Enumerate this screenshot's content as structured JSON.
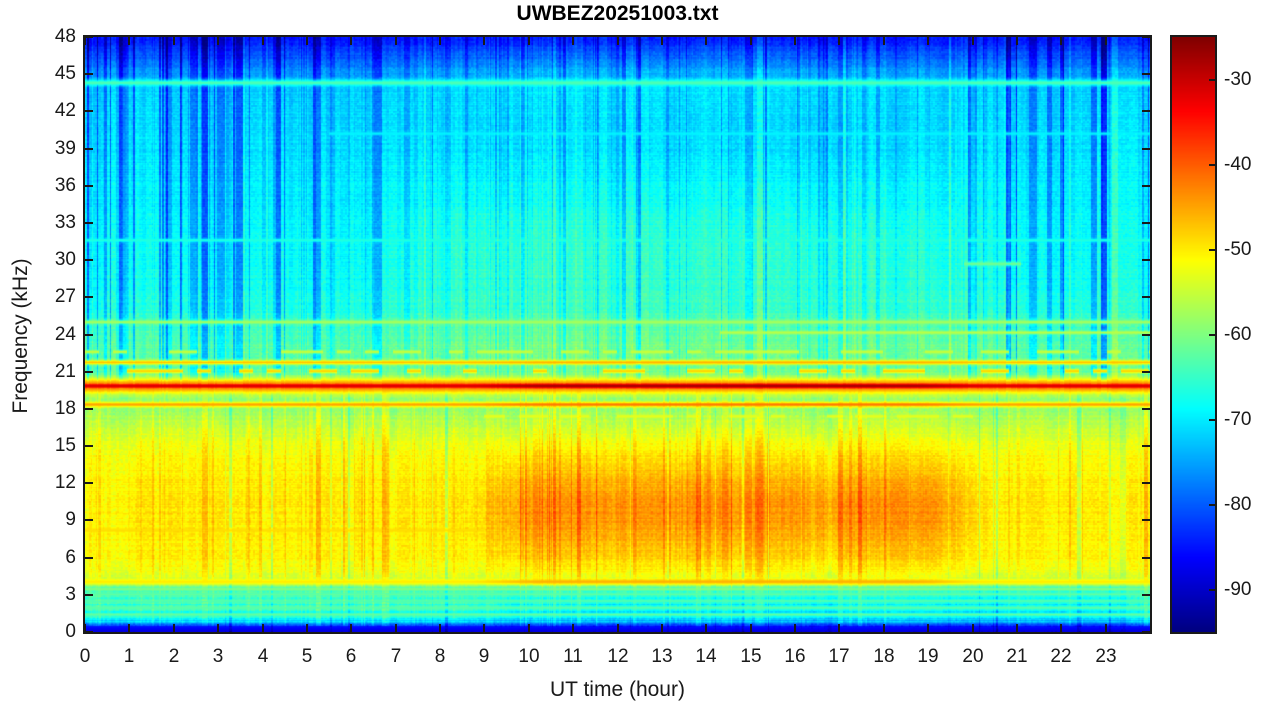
{
  "chart_data": {
    "type": "heatmap",
    "subtype": "spectrogram",
    "title": "UWBEZ20251003.txt",
    "xlabel": "UT time (hour)",
    "ylabel": "Frequency (kHz)",
    "x_range": [
      0,
      24
    ],
    "y_range_khz": [
      0,
      48
    ],
    "x_ticks": [
      0,
      1,
      2,
      3,
      4,
      5,
      6,
      7,
      8,
      9,
      10,
      11,
      12,
      13,
      14,
      15,
      16,
      17,
      18,
      19,
      20,
      21,
      22,
      23
    ],
    "y_ticks": [
      0,
      3,
      6,
      9,
      12,
      15,
      18,
      21,
      24,
      27,
      30,
      33,
      36,
      39,
      42,
      45,
      48
    ],
    "grid": false,
    "colorbar": {
      "position": "right",
      "colormap": "jet",
      "range_db": [
        -95,
        -25
      ],
      "ticks": [
        -30,
        -40,
        -50,
        -60,
        -70,
        -80,
        -90
      ]
    },
    "axis_color": "#1a1a1a",
    "background_color": "#ffffff",
    "render_model": {
      "seed": 20251003,
      "base_profile_khz_db": [
        [
          0,
          -89
        ],
        [
          0.45,
          -84
        ],
        [
          0.8,
          -72
        ],
        [
          1.2,
          -67
        ],
        [
          2.0,
          -66
        ],
        [
          3.0,
          -65.5
        ],
        [
          3.6,
          -63
        ],
        [
          4.3,
          -55
        ],
        [
          5.0,
          -52
        ],
        [
          6,
          -51
        ],
        [
          8,
          -50.5
        ],
        [
          10,
          -50
        ],
        [
          12,
          -50.5
        ],
        [
          14,
          -51.5
        ],
        [
          15.5,
          -53.5
        ],
        [
          16.5,
          -55.5
        ],
        [
          17.5,
          -57.5
        ],
        [
          18.0,
          -58.5
        ],
        [
          18.8,
          -61
        ],
        [
          19.4,
          -62.5
        ],
        [
          20.4,
          -64
        ],
        [
          21.3,
          -63
        ],
        [
          22.3,
          -62.5
        ],
        [
          23.2,
          -63
        ],
        [
          24.5,
          -64.5
        ],
        [
          26,
          -66.5
        ],
        [
          28,
          -68
        ],
        [
          31,
          -68.5
        ],
        [
          34,
          -69.5
        ],
        [
          38,
          -70.5
        ],
        [
          41,
          -71.5
        ],
        [
          43.5,
          -72
        ],
        [
          44.8,
          -75
        ],
        [
          45.8,
          -78
        ],
        [
          46.6,
          -81
        ],
        [
          47.4,
          -83.5
        ],
        [
          48,
          -84.5
        ]
      ],
      "h_lines": [
        {
          "name": "vlf-19.8khz-strong",
          "f": 19.85,
          "w": 0.22,
          "db": -31,
          "mid_boost": 3.5
        },
        {
          "name": "vlf-19.8khz-skirt",
          "f": 19.85,
          "w": 0.5,
          "db": -44
        },
        {
          "name": "vlf-18.3khz",
          "f": 18.35,
          "w": 0.14,
          "db": -45,
          "mid_boost": 3
        },
        {
          "name": "vlf-21.8khz",
          "f": 21.75,
          "w": 0.13,
          "db": -47,
          "mid_boost": 1
        },
        {
          "name": "vlf-21.0khz-dashes",
          "f": 21.05,
          "w": 0.12,
          "db": -48,
          "dash": 0.5
        },
        {
          "name": "vlf-22.6khz-faint",
          "f": 22.6,
          "w": 0.1,
          "db": -55,
          "dash": 0.6
        },
        {
          "name": "vlf-24.2khz-late",
          "f": 24.15,
          "w": 0.1,
          "db": -56,
          "t0": 14.3,
          "t1": 24
        },
        {
          "name": "vlf-25.0khz",
          "f": 25.0,
          "w": 0.12,
          "db": -57.5
        },
        {
          "name": "tweek-4khz",
          "f": 4.05,
          "w": 0.18,
          "db": -50,
          "mid_boost": 4
        },
        {
          "name": "band-8.2khz",
          "f": 8.2,
          "w": 0.12,
          "db": -49,
          "t0": 0,
          "t1": 9
        },
        {
          "name": "band-17.4khz",
          "f": 17.4,
          "w": 0.1,
          "db": -53,
          "t0": 9,
          "t1": 20,
          "dash": 0.5
        },
        {
          "name": "line-44.3khz",
          "f": 44.3,
          "w": 0.18,
          "db": -63.5
        },
        {
          "name": "line-40.2khz-faint",
          "f": 40.2,
          "w": 0.1,
          "db": -69.5,
          "t0": 5.5,
          "t1": 24
        },
        {
          "name": "line-31.6khz-faint",
          "f": 31.6,
          "w": 0.1,
          "db": -66.5
        },
        {
          "name": "line-29.7khz-segment",
          "f": 29.7,
          "w": 0.12,
          "db": -61,
          "t0": 19.8,
          "t1": 21.1
        },
        {
          "name": "striation-1.4",
          "f": 1.4,
          "w": 0.08,
          "db": -62
        },
        {
          "name": "striation-1.9",
          "f": 1.95,
          "w": 0.08,
          "db": -62.5
        },
        {
          "name": "striation-2.5",
          "f": 2.5,
          "w": 0.08,
          "db": -63
        },
        {
          "name": "striation-3.0",
          "f": 3.05,
          "w": 0.08,
          "db": -62
        },
        {
          "name": "striation-3.5",
          "f": 3.45,
          "w": 0.09,
          "db": -60
        }
      ],
      "day_blobs": [
        {
          "name": "daytime-chorus-blob",
          "fc": 9.8,
          "sf": 3.0,
          "amp": 6.0,
          "t0": 9.2,
          "t1": 19.8,
          "soft": 0.9
        },
        {
          "name": "daytime-30khz-green",
          "fc": 30.5,
          "sf": 4.5,
          "amp": 3.2,
          "t0": 7.5,
          "t1": 19.5,
          "soft": 1.8
        },
        {
          "name": "daytime-45khz",
          "fc": 45,
          "sf": 2.2,
          "amp": 2.0,
          "t0": 8,
          "t1": 19,
          "soft": 2.0
        },
        {
          "name": "daytime-22khz",
          "fc": 22.5,
          "sf": 2.0,
          "amp": 1.5,
          "t0": 8,
          "t1": 20,
          "soft": 1.5
        },
        {
          "name": "day-lowband-dim",
          "fc": 2.0,
          "sf": 1.2,
          "amp": -3.5,
          "t0": 9.5,
          "t1": 23.5,
          "soft": 1.2
        },
        {
          "name": "early-morning-dim",
          "fc": 10,
          "sf": 4.0,
          "amp": -2.0,
          "t0": -2,
          "t1": 0.5,
          "soft": 0.6
        }
      ],
      "gap_columns": [
        {
          "t": 3.28,
          "w": 0.06,
          "db": -5
        },
        {
          "t": 5.55,
          "w": 0.05,
          "db": -4
        },
        {
          "t": 8.15,
          "w": 0.08,
          "db": -6
        },
        {
          "t": 20.55,
          "w": 0.06,
          "db": -5
        },
        {
          "t": 23.1,
          "w": 0.05,
          "db": -4
        }
      ],
      "streaks": {
        "hold": 0.55,
        "up_spike_p": 0.27,
        "up_spike_max": 5.5,
        "up_bright_p": 0.1,
        "low_pos_p": 0.2,
        "low_pos_max": 3.2,
        "low_neg_p": 0.06,
        "night_gain": 0.9,
        "day_gain": 0.35
      },
      "noise": {
        "cell": 1.3,
        "row": 0.8,
        "low_row": 2.0
      }
    }
  }
}
